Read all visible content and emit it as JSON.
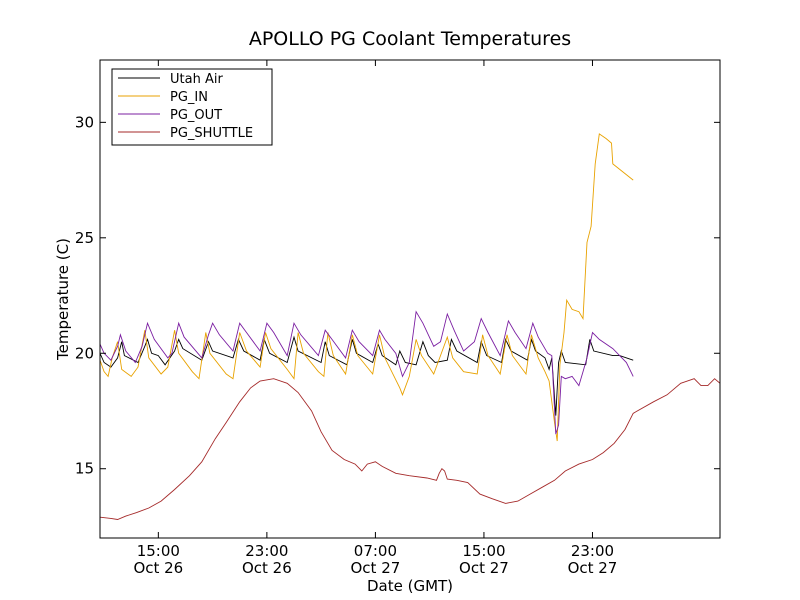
{
  "chart_data": {
    "type": "line",
    "title": "APOLLO PG Coolant Temperatures",
    "xlabel": "Date (GMT)",
    "ylabel": "Temperature (C)",
    "xlim": [
      10.7,
      56.4
    ],
    "ylim": [
      12,
      32.7
    ],
    "x_unit": "hours since Oct 26 00:00 GMT",
    "x_ticks": [
      {
        "value": 15,
        "line1": "15:00",
        "line2": "Oct 26"
      },
      {
        "value": 23,
        "line1": "23:00",
        "line2": "Oct 26"
      },
      {
        "value": 31,
        "line1": "07:00",
        "line2": "Oct 27"
      },
      {
        "value": 39,
        "line1": "15:00",
        "line2": "Oct 27"
      },
      {
        "value": 47,
        "line1": "23:00",
        "line2": "Oct 27"
      }
    ],
    "y_ticks": [
      {
        "value": 15,
        "label": "15"
      },
      {
        "value": 20,
        "label": "20"
      },
      {
        "value": 25,
        "label": "25"
      },
      {
        "value": 30,
        "label": "30"
      }
    ],
    "grid": false,
    "legend_position": "top-left",
    "series": [
      {
        "name": "Utah Air",
        "color": "#000000",
        "points": [
          [
            10.7,
            20.0
          ],
          [
            11.0,
            19.6
          ],
          [
            11.5,
            19.4
          ],
          [
            12.0,
            19.8
          ],
          [
            12.3,
            20.5
          ],
          [
            12.5,
            19.9
          ],
          [
            13.5,
            19.6
          ],
          [
            14.0,
            20.3
          ],
          [
            14.2,
            20.6
          ],
          [
            14.5,
            20.0
          ],
          [
            15.0,
            19.9
          ],
          [
            15.5,
            19.5
          ],
          [
            16.2,
            20.1
          ],
          [
            16.5,
            20.6
          ],
          [
            16.8,
            20.2
          ],
          [
            18.2,
            19.7
          ],
          [
            18.7,
            20.5
          ],
          [
            19.0,
            20.1
          ],
          [
            20.5,
            19.8
          ],
          [
            20.9,
            20.6
          ],
          [
            21.3,
            20.1
          ],
          [
            22.5,
            19.7
          ],
          [
            22.8,
            20.6
          ],
          [
            23.2,
            20.0
          ],
          [
            24.5,
            19.6
          ],
          [
            25.0,
            20.7
          ],
          [
            25.3,
            20.1
          ],
          [
            27.0,
            19.6
          ],
          [
            27.3,
            20.5
          ],
          [
            27.6,
            19.9
          ],
          [
            28.9,
            19.5
          ],
          [
            29.3,
            20.6
          ],
          [
            29.6,
            20.0
          ],
          [
            30.8,
            19.6
          ],
          [
            31.2,
            20.4
          ],
          [
            31.5,
            19.9
          ],
          [
            32.5,
            19.5
          ],
          [
            32.8,
            20.1
          ],
          [
            33.2,
            19.6
          ],
          [
            34.0,
            19.5
          ],
          [
            34.5,
            20.5
          ],
          [
            34.9,
            19.9
          ],
          [
            35.4,
            19.6
          ],
          [
            36.3,
            19.7
          ],
          [
            36.6,
            20.6
          ],
          [
            37.0,
            20.1
          ],
          [
            38.5,
            19.6
          ],
          [
            38.8,
            20.5
          ],
          [
            39.2,
            19.9
          ],
          [
            40.3,
            19.6
          ],
          [
            40.6,
            20.6
          ],
          [
            41.0,
            20.1
          ],
          [
            42.2,
            19.7
          ],
          [
            42.5,
            20.6
          ],
          [
            42.8,
            20.1
          ],
          [
            43.5,
            19.8
          ],
          [
            43.8,
            19.3
          ],
          [
            44.0,
            19.8
          ],
          [
            44.3,
            17.3
          ],
          [
            44.5,
            19.6
          ],
          [
            44.7,
            20.1
          ],
          [
            45.0,
            19.6
          ],
          [
            46.5,
            19.5
          ],
          [
            46.8,
            20.6
          ],
          [
            47.1,
            20.1
          ],
          [
            48.5,
            19.9
          ],
          [
            49.0,
            19.9
          ],
          [
            50.0,
            19.7
          ]
        ]
      },
      {
        "name": "PG_IN",
        "color": "#e8a200",
        "points": [
          [
            10.7,
            19.7
          ],
          [
            11.0,
            19.2
          ],
          [
            11.3,
            19.0
          ],
          [
            11.6,
            19.8
          ],
          [
            12.0,
            20.5
          ],
          [
            12.3,
            19.3
          ],
          [
            13.0,
            19.0
          ],
          [
            13.5,
            19.4
          ],
          [
            14.0,
            21.0
          ],
          [
            14.3,
            19.8
          ],
          [
            15.2,
            19.1
          ],
          [
            15.7,
            19.4
          ],
          [
            16.2,
            21.0
          ],
          [
            16.5,
            20.0
          ],
          [
            17.5,
            19.2
          ],
          [
            18.0,
            18.9
          ],
          [
            18.5,
            20.9
          ],
          [
            18.8,
            20.0
          ],
          [
            20.0,
            19.1
          ],
          [
            20.5,
            18.9
          ],
          [
            21.0,
            20.9
          ],
          [
            21.5,
            20.1
          ],
          [
            22.5,
            19.4
          ],
          [
            22.9,
            20.9
          ],
          [
            23.3,
            20.2
          ],
          [
            24.5,
            19.3
          ],
          [
            25.0,
            18.9
          ],
          [
            25.3,
            20.9
          ],
          [
            25.7,
            20.0
          ],
          [
            26.8,
            19.2
          ],
          [
            27.2,
            19.0
          ],
          [
            27.5,
            20.9
          ],
          [
            27.9,
            19.9
          ],
          [
            28.8,
            19.1
          ],
          [
            29.3,
            20.8
          ],
          [
            29.7,
            19.9
          ],
          [
            30.8,
            19.1
          ],
          [
            31.3,
            20.8
          ],
          [
            31.7,
            19.8
          ],
          [
            32.8,
            18.5
          ],
          [
            33.0,
            18.2
          ],
          [
            33.5,
            19.0
          ],
          [
            34.0,
            20.6
          ],
          [
            34.4,
            19.9
          ],
          [
            35.3,
            19.1
          ],
          [
            35.8,
            19.9
          ],
          [
            36.3,
            20.7
          ],
          [
            36.7,
            19.8
          ],
          [
            37.5,
            19.2
          ],
          [
            38.5,
            19.1
          ],
          [
            38.9,
            20.8
          ],
          [
            39.3,
            19.9
          ],
          [
            40.2,
            19.1
          ],
          [
            40.7,
            20.8
          ],
          [
            41.1,
            19.9
          ],
          [
            42.1,
            19.1
          ],
          [
            42.5,
            20.8
          ],
          [
            43.0,
            19.8
          ],
          [
            43.5,
            19.2
          ],
          [
            43.8,
            18.8
          ],
          [
            44.2,
            17.0
          ],
          [
            44.4,
            16.2
          ],
          [
            44.6,
            19.5
          ],
          [
            44.9,
            20.9
          ],
          [
            45.1,
            22.3
          ],
          [
            45.5,
            21.9
          ],
          [
            46.0,
            21.8
          ],
          [
            46.3,
            21.5
          ],
          [
            46.6,
            24.8
          ],
          [
            46.9,
            25.5
          ],
          [
            47.2,
            28.2
          ],
          [
            47.5,
            29.5
          ],
          [
            48.0,
            29.3
          ],
          [
            48.4,
            29.1
          ],
          [
            48.5,
            28.2
          ],
          [
            50.0,
            27.5
          ]
        ]
      },
      {
        "name": "PG_OUT",
        "color": "#7b1fa2",
        "points": [
          [
            10.7,
            20.4
          ],
          [
            11.0,
            20.0
          ],
          [
            11.5,
            19.7
          ],
          [
            12.0,
            20.3
          ],
          [
            12.2,
            20.8
          ],
          [
            12.6,
            20.1
          ],
          [
            13.3,
            19.6
          ],
          [
            13.8,
            20.3
          ],
          [
            14.2,
            21.3
          ],
          [
            14.7,
            20.6
          ],
          [
            15.7,
            19.8
          ],
          [
            16.0,
            20.0
          ],
          [
            16.5,
            21.3
          ],
          [
            16.9,
            20.7
          ],
          [
            18.2,
            19.8
          ],
          [
            18.7,
            20.8
          ],
          [
            19.0,
            21.3
          ],
          [
            19.5,
            20.8
          ],
          [
            20.5,
            20.1
          ],
          [
            21.0,
            21.3
          ],
          [
            21.5,
            20.9
          ],
          [
            22.5,
            20.1
          ],
          [
            23.0,
            21.3
          ],
          [
            23.5,
            20.9
          ],
          [
            24.5,
            19.9
          ],
          [
            25.0,
            21.3
          ],
          [
            25.5,
            20.8
          ],
          [
            26.8,
            19.9
          ],
          [
            27.3,
            21.0
          ],
          [
            27.8,
            20.6
          ],
          [
            28.8,
            19.8
          ],
          [
            29.3,
            21.0
          ],
          [
            29.8,
            20.5
          ],
          [
            30.8,
            19.9
          ],
          [
            31.3,
            21.0
          ],
          [
            31.7,
            20.6
          ],
          [
            32.5,
            20.0
          ],
          [
            33.0,
            19.0
          ],
          [
            33.5,
            19.6
          ],
          [
            34.0,
            21.8
          ],
          [
            34.5,
            21.3
          ],
          [
            35.3,
            20.3
          ],
          [
            35.8,
            20.5
          ],
          [
            36.3,
            21.7
          ],
          [
            36.8,
            21.0
          ],
          [
            37.5,
            20.1
          ],
          [
            38.3,
            20.5
          ],
          [
            38.8,
            21.5
          ],
          [
            39.3,
            20.9
          ],
          [
            40.2,
            19.9
          ],
          [
            40.8,
            21.4
          ],
          [
            41.3,
            20.9
          ],
          [
            42.1,
            20.2
          ],
          [
            42.6,
            21.3
          ],
          [
            43.0,
            20.7
          ],
          [
            43.7,
            20.0
          ],
          [
            44.0,
            19.9
          ],
          [
            44.3,
            16.5
          ],
          [
            44.5,
            16.9
          ],
          [
            44.7,
            19.0
          ],
          [
            45.0,
            18.9
          ],
          [
            45.5,
            19.0
          ],
          [
            46.0,
            18.6
          ],
          [
            46.3,
            19.2
          ],
          [
            46.6,
            19.8
          ],
          [
            47.0,
            20.9
          ],
          [
            47.5,
            20.6
          ],
          [
            48.5,
            20.2
          ],
          [
            49.5,
            19.6
          ],
          [
            50.0,
            19.0
          ]
        ]
      },
      {
        "name": "PG_SHUTTLE",
        "color": "#a52a2a",
        "points": [
          [
            10.7,
            12.9
          ],
          [
            11.5,
            12.85
          ],
          [
            12.0,
            12.8
          ],
          [
            12.6,
            12.95
          ],
          [
            13.4,
            13.1
          ],
          [
            14.3,
            13.3
          ],
          [
            15.2,
            13.6
          ],
          [
            16.2,
            14.1
          ],
          [
            17.3,
            14.7
          ],
          [
            18.2,
            15.3
          ],
          [
            19.2,
            16.3
          ],
          [
            20.0,
            17.0
          ],
          [
            21.0,
            17.9
          ],
          [
            21.8,
            18.5
          ],
          [
            22.5,
            18.8
          ],
          [
            23.5,
            18.9
          ],
          [
            24.5,
            18.7
          ],
          [
            25.3,
            18.3
          ],
          [
            26.3,
            17.5
          ],
          [
            27.0,
            16.6
          ],
          [
            27.8,
            15.8
          ],
          [
            28.7,
            15.4
          ],
          [
            29.5,
            15.2
          ],
          [
            30.0,
            14.9
          ],
          [
            30.4,
            15.2
          ],
          [
            31.0,
            15.3
          ],
          [
            31.5,
            15.1
          ],
          [
            32.5,
            14.8
          ],
          [
            33.5,
            14.7
          ],
          [
            34.8,
            14.6
          ],
          [
            35.5,
            14.5
          ],
          [
            35.7,
            14.8
          ],
          [
            35.9,
            15.0
          ],
          [
            36.1,
            14.9
          ],
          [
            36.3,
            14.55
          ],
          [
            37.0,
            14.5
          ],
          [
            37.8,
            14.4
          ],
          [
            38.7,
            13.9
          ],
          [
            39.6,
            13.7
          ],
          [
            40.6,
            13.5
          ],
          [
            41.5,
            13.6
          ],
          [
            42.4,
            13.9
          ],
          [
            43.3,
            14.2
          ],
          [
            44.2,
            14.5
          ],
          [
            45.0,
            14.9
          ],
          [
            46.0,
            15.2
          ],
          [
            47.0,
            15.4
          ],
          [
            47.8,
            15.7
          ],
          [
            48.6,
            16.1
          ],
          [
            49.4,
            16.7
          ],
          [
            50.0,
            17.4
          ],
          [
            51.5,
            17.9
          ],
          [
            52.5,
            18.2
          ],
          [
            53.5,
            18.7
          ],
          [
            54.5,
            18.9
          ],
          [
            55.0,
            18.6
          ],
          [
            55.5,
            18.6
          ],
          [
            56.0,
            18.9
          ],
          [
            56.4,
            18.7
          ]
        ]
      }
    ]
  }
}
